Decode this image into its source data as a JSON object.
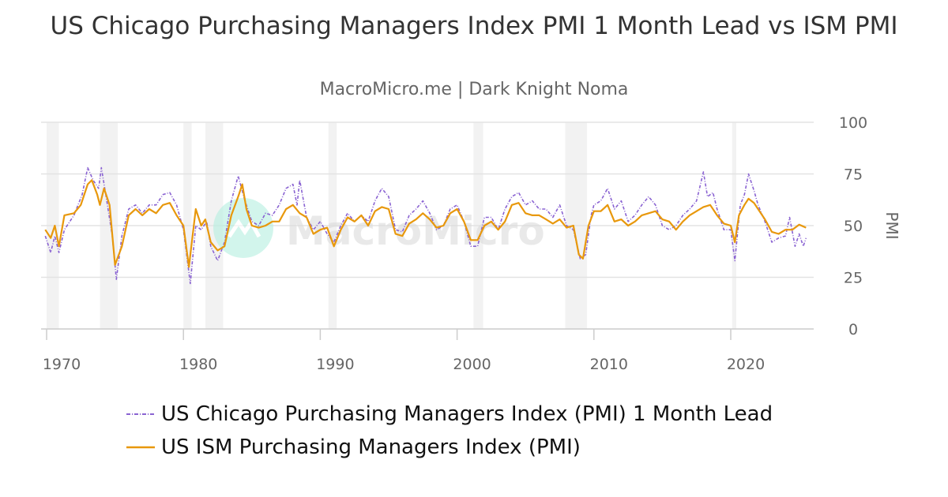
{
  "chart_data": {
    "type": "line",
    "title": "US Chicago Purchasing Managers Index PMI 1 Month Lead vs ISM PMI",
    "subtitle": "MacroMicro.me | Dark Knight Noma",
    "ylabel": "PMI",
    "ylim": [
      0,
      100
    ],
    "yticks": [
      "0",
      "25",
      "50",
      "75",
      "100"
    ],
    "xlim": [
      1969.6,
      2025.9
    ],
    "xticks": [
      "1970",
      "1980",
      "1990",
      "2000",
      "2010",
      "2020"
    ],
    "grid": true,
    "legend_position": "bottom",
    "watermark": "MacroMicro",
    "recessions": [
      [
        1970.0,
        1970.9
      ],
      [
        1973.9,
        1975.2
      ],
      [
        1980.0,
        1980.6
      ],
      [
        1981.6,
        1982.9
      ],
      [
        1990.6,
        1991.2
      ],
      [
        2001.2,
        2001.9
      ],
      [
        2007.9,
        2009.5
      ],
      [
        2020.1,
        2020.4
      ]
    ],
    "series": [
      {
        "name": "US Chicago Purchasing Managers Index (PMI) 1 Month Lead",
        "color": "#8a63d2",
        "style": "dash-dot",
        "x": [
          1969.9,
          1970.3,
          1970.6,
          1970.9,
          1971.3,
          1972,
          1972.6,
          1973,
          1973.4,
          1973.8,
          1974.0,
          1974.4,
          1974.8,
          1975.1,
          1975.5,
          1976,
          1976.5,
          1977,
          1977.5,
          1978,
          1978.5,
          1979,
          1979.5,
          1980,
          1980.5,
          1980.9,
          1981.3,
          1981.7,
          1982,
          1982.5,
          1983,
          1983.5,
          1984,
          1984.5,
          1985,
          1985.5,
          1986,
          1986.5,
          1987,
          1987.5,
          1988,
          1988.3,
          1988.5,
          1989,
          1989.5,
          1990,
          1990.5,
          1991,
          1991.5,
          1992,
          1992.5,
          1993,
          1993.5,
          1994,
          1994.5,
          1995,
          1995.5,
          1996,
          1996.5,
          1997,
          1997.5,
          1998,
          1998.5,
          1999,
          1999.5,
          2000,
          2000.5,
          2001,
          2001.5,
          2002,
          2002.5,
          2003,
          2003.5,
          2004,
          2004.5,
          2005,
          2005.5,
          2006,
          2006.5,
          2007,
          2007.5,
          2008,
          2008.5,
          2009,
          2009.4,
          2009.8,
          2010,
          2010.5,
          2011,
          2011.5,
          2012,
          2012.5,
          2013,
          2013.5,
          2014,
          2014.5,
          2015,
          2015.5,
          2016,
          2016.5,
          2017,
          2017.5,
          2018,
          2018.3,
          2018.7,
          2019,
          2019.5,
          2020,
          2020.3,
          2020.7,
          2021,
          2021.3,
          2021.7,
          2022,
          2022.5,
          2023,
          2023.5,
          2024,
          2024.3,
          2024.7,
          2025,
          2025.3,
          2025.5
        ],
        "values": [
          45,
          37,
          45,
          37,
          48,
          55,
          65,
          78,
          72,
          68,
          78,
          62,
          45,
          24,
          45,
          58,
          60,
          56,
          60,
          60,
          65,
          66,
          60,
          48,
          22,
          50,
          48,
          52,
          40,
          33,
          42,
          62,
          74,
          62,
          52,
          50,
          56,
          55,
          60,
          68,
          70,
          60,
          72,
          54,
          48,
          52,
          46,
          42,
          50,
          56,
          52,
          55,
          52,
          62,
          68,
          64,
          48,
          47,
          55,
          58,
          62,
          56,
          48,
          50,
          58,
          60,
          52,
          40,
          40,
          54,
          54,
          48,
          58,
          64,
          66,
          60,
          62,
          58,
          58,
          54,
          60,
          50,
          48,
          34,
          36,
          55,
          60,
          62,
          68,
          58,
          62,
          52,
          55,
          60,
          64,
          60,
          50,
          48,
          50,
          55,
          58,
          62,
          76,
          64,
          66,
          58,
          48,
          48,
          33,
          60,
          65,
          75,
          67,
          60,
          52,
          42,
          44,
          45,
          54,
          40,
          46,
          40,
          44
        ]
      },
      {
        "name": "US ISM Purchasing Managers Index (PMI)",
        "color": "#e8980c",
        "style": "solid",
        "x": [
          1969.9,
          1970.3,
          1970.6,
          1970.9,
          1971.3,
          1972,
          1972.5,
          1973,
          1973.3,
          1973.7,
          1973.9,
          1974.2,
          1974.6,
          1975.0,
          1975.5,
          1976,
          1976.5,
          1977,
          1977.5,
          1978,
          1978.5,
          1979,
          1979.5,
          1980,
          1980.4,
          1980.9,
          1981.3,
          1981.6,
          1982,
          1982.5,
          1983,
          1983.5,
          1984,
          1984.3,
          1984.6,
          1985,
          1985.5,
          1986,
          1986.5,
          1987,
          1987.5,
          1988,
          1988.5,
          1989,
          1989.5,
          1990,
          1990.5,
          1991,
          1991.5,
          1992,
          1992.5,
          1993,
          1993.5,
          1994,
          1994.5,
          1995,
          1995.5,
          1996,
          1996.5,
          1997,
          1997.5,
          1998,
          1998.5,
          1999,
          1999.5,
          2000,
          2000.5,
          2001,
          2001.5,
          2002,
          2002.5,
          2003,
          2003.5,
          2004,
          2004.5,
          2005,
          2005.5,
          2006,
          2006.5,
          2007,
          2007.5,
          2008,
          2008.5,
          2008.9,
          2009.2,
          2009.6,
          2010,
          2010.5,
          2011,
          2011.5,
          2012,
          2012.5,
          2013,
          2013.5,
          2014,
          2014.5,
          2015,
          2015.5,
          2016,
          2016.5,
          2017,
          2017.5,
          2018,
          2018.5,
          2019,
          2019.5,
          2020,
          2020.3,
          2020.6,
          2021,
          2021.3,
          2021.7,
          2022,
          2022.5,
          2023,
          2023.5,
          2024,
          2024.5,
          2025,
          2025.5
        ],
        "values": [
          48,
          44,
          50,
          40,
          55,
          56,
          60,
          70,
          72,
          65,
          60,
          68,
          60,
          31,
          40,
          55,
          58,
          55,
          58,
          56,
          60,
          61,
          55,
          50,
          30,
          58,
          50,
          53,
          42,
          38,
          40,
          55,
          64,
          70,
          58,
          50,
          49,
          50,
          52,
          52,
          58,
          60,
          56,
          54,
          46,
          48,
          49,
          40,
          48,
          54,
          52,
          55,
          50,
          57,
          59,
          58,
          46,
          45,
          51,
          53,
          56,
          53,
          49,
          50,
          56,
          58,
          52,
          43,
          43,
          50,
          52,
          48,
          52,
          60,
          61,
          56,
          55,
          55,
          53,
          51,
          53,
          49,
          50,
          36,
          34,
          50,
          57,
          57,
          60,
          52,
          53,
          50,
          52,
          55,
          56,
          57,
          53,
          52,
          48,
          52,
          55,
          57,
          59,
          60,
          55,
          51,
          50,
          42,
          55,
          60,
          63,
          61,
          58,
          53,
          47,
          46,
          48,
          48,
          50.5,
          49
        ]
      }
    ]
  }
}
